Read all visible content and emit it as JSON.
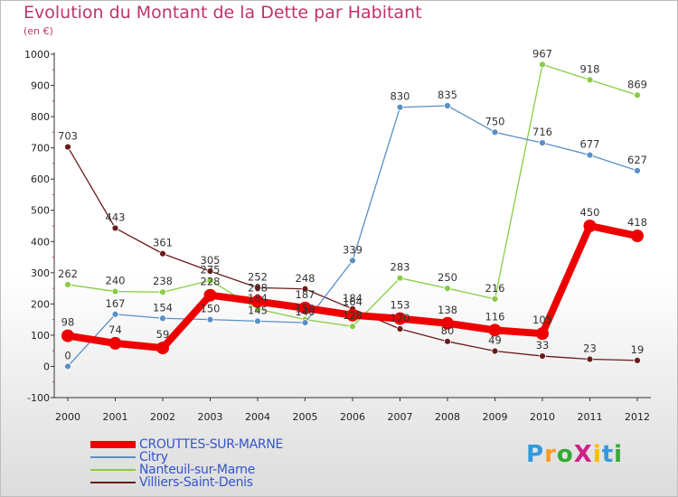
{
  "title": "Evolution du Montant de la Dette par Habitant",
  "unit": "(en €)",
  "logo": "ProXiti",
  "chart_data": {
    "type": "line",
    "x": [
      "2000",
      "2001",
      "2002",
      "2003",
      "2004",
      "2005",
      "2006",
      "2007",
      "2008",
      "2009",
      "2010",
      "2011",
      "2012"
    ],
    "ylim": [
      -100,
      1000
    ],
    "yticks": [
      "-100",
      "0",
      "100",
      "200",
      "300",
      "400",
      "500",
      "600",
      "700",
      "800",
      "900",
      "1000"
    ],
    "grid": false,
    "legend_position": "bottom-left",
    "series": [
      {
        "name": "Villiers-Saint-Denis",
        "color": "#6b1a1a",
        "values": [
          703,
          443,
          361,
          305,
          252,
          248,
          184,
          120,
          80,
          49,
          33,
          23,
          19
        ],
        "labels": [
          "703",
          "443",
          "361",
          "305",
          "252",
          "248",
          "184",
          "120",
          "80",
          "49",
          "33",
          "23",
          "19"
        ]
      },
      {
        "name": "Nanteuil-sur-Marne",
        "color": "#88cc44",
        "values": [
          262,
          240,
          238,
          275,
          184,
          150,
          128,
          283,
          250,
          216,
          967,
          918,
          869
        ],
        "labels": [
          "262",
          "240",
          "238",
          "275",
          "184",
          "150",
          "128",
          "283",
          "250",
          "216",
          "967",
          "918",
          "869"
        ]
      },
      {
        "name": "Citry",
        "color": "#5a8fc4",
        "values": [
          0,
          167,
          154,
          150,
          145,
          140,
          339,
          830,
          835,
          750,
          716,
          677,
          627
        ],
        "labels": [
          "0",
          "167",
          "154",
          "150",
          "145",
          "140",
          "339",
          "830",
          "835",
          "750",
          "716",
          "677",
          "627"
        ]
      },
      {
        "name": "CROUTTES-SUR-MARNE",
        "color": "#ee0000",
        "values": [
          98,
          74,
          59,
          228,
          208,
          187,
          164,
          153,
          138,
          116,
          105,
          450,
          418
        ],
        "labels": [
          "98",
          "74",
          "59",
          "228",
          "208",
          "187",
          "164",
          "153",
          "138",
          "116",
          "105",
          "450",
          "418"
        ]
      }
    ]
  },
  "legend": [
    {
      "name": "CROUTTES-SUR-MARNE",
      "color": "#ee0000",
      "thick": 8
    },
    {
      "name": "Citry",
      "color": "#5a8fc4",
      "thick": 2
    },
    {
      "name": "Nanteuil-sur-Marne",
      "color": "#88cc44",
      "thick": 2
    },
    {
      "name": "Villiers-Saint-Denis",
      "color": "#6b1a1a",
      "thick": 2
    }
  ]
}
